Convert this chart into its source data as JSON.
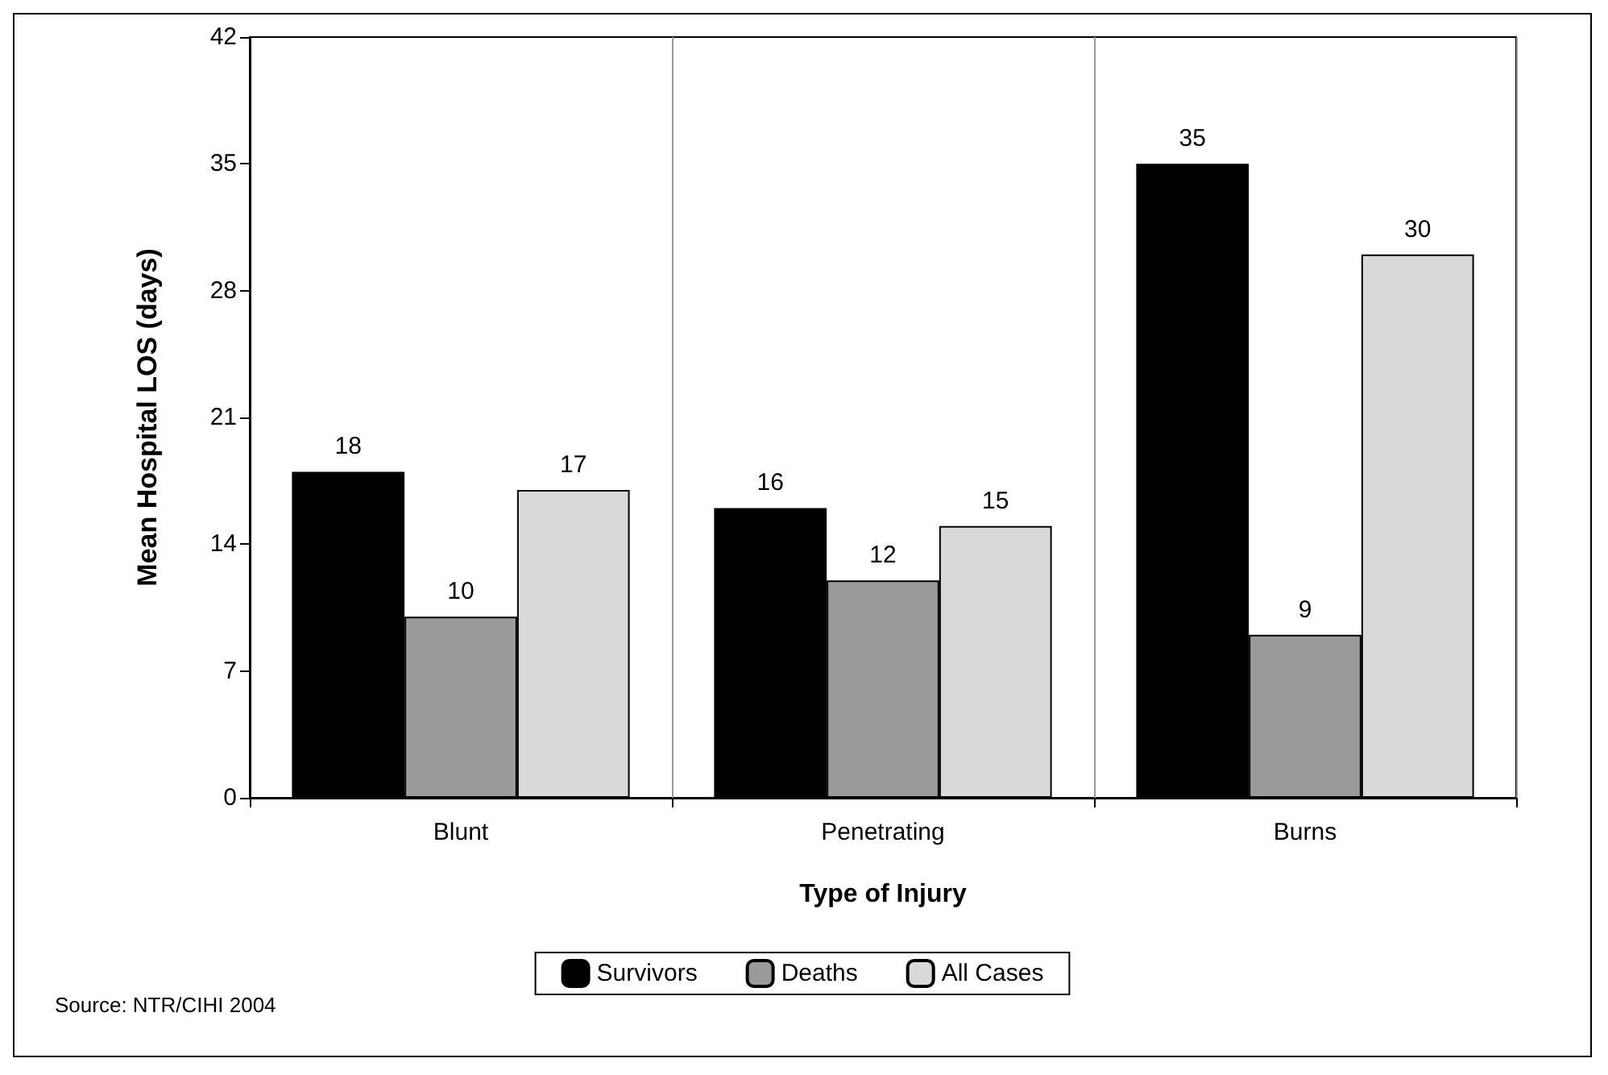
{
  "chart_data": {
    "type": "bar",
    "xlabel": "Type of Injury",
    "ylabel": "Mean Hospital LOS (days)",
    "categories": [
      "Blunt",
      "Penetrating",
      "Burns"
    ],
    "series": [
      {
        "name": "Survivors",
        "color": "#000000",
        "values": [
          18,
          16,
          35
        ]
      },
      {
        "name": "Deaths",
        "color": "#9a9a9a",
        "values": [
          10,
          12,
          9
        ]
      },
      {
        "name": "All Cases",
        "color": "#d9d9d9",
        "values": [
          17,
          15,
          30
        ]
      }
    ],
    "ylim": [
      0,
      42
    ],
    "yticks": [
      0,
      7,
      14,
      21,
      28,
      35,
      42
    ],
    "grid": "x",
    "legend": "bottom",
    "data_labels": true,
    "annotations": [
      "Source: NTR/CIHI 2004"
    ]
  }
}
